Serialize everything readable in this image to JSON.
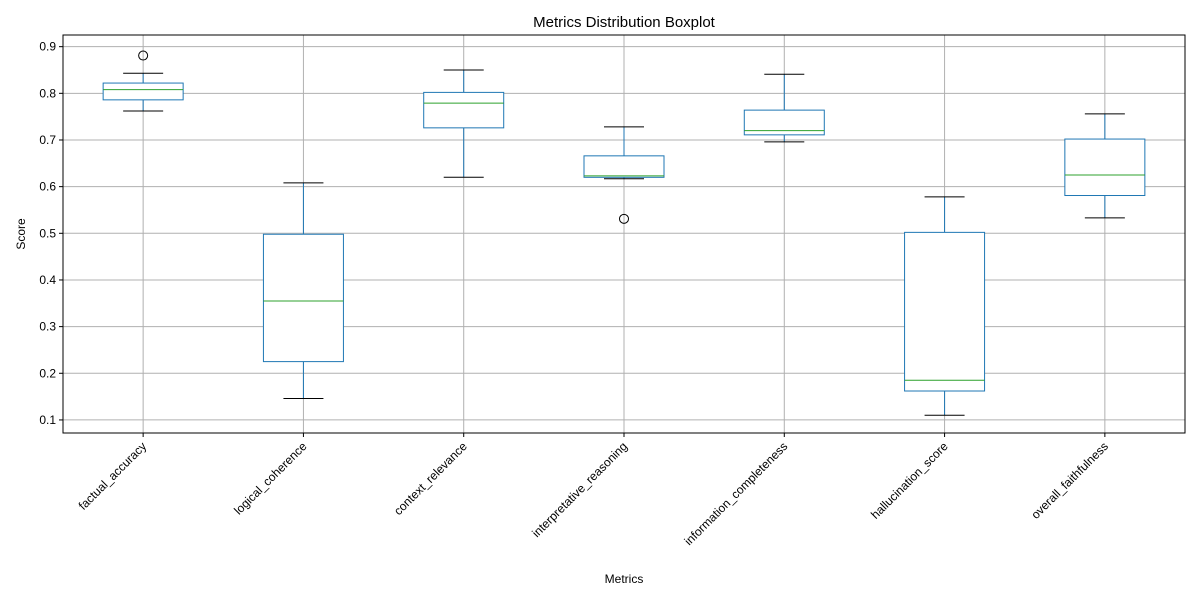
{
  "chart_data": {
    "type": "boxplot",
    "title": "Metrics Distribution Boxplot",
    "xlabel": "Metrics",
    "ylabel": "Score",
    "ylim": [
      0.072,
      0.925
    ],
    "yticks": [
      "0.1",
      "0.2",
      "0.3",
      "0.4",
      "0.5",
      "0.6",
      "0.7",
      "0.8",
      "0.9"
    ],
    "grid": true,
    "colors": {
      "box": "#1f77b4",
      "median": "#2ca02c",
      "whisker_cap": "#000000",
      "grid": "#b0b0b0"
    },
    "categories": [
      "factual_accuracy",
      "logical_coherence",
      "context_relevance",
      "interpretative_reasoning",
      "information_completeness",
      "hallucination_score",
      "overall_faithfulness"
    ],
    "boxes": [
      {
        "whislo": 0.762,
        "q1": 0.786,
        "med": 0.808,
        "q3": 0.822,
        "whishi": 0.843,
        "fliers": [
          0.881
        ]
      },
      {
        "whislo": 0.146,
        "q1": 0.225,
        "med": 0.355,
        "q3": 0.498,
        "whishi": 0.608,
        "fliers": []
      },
      {
        "whislo": 0.62,
        "q1": 0.726,
        "med": 0.779,
        "q3": 0.802,
        "whishi": 0.85,
        "fliers": []
      },
      {
        "whislo": 0.617,
        "q1": 0.62,
        "med": 0.623,
        "q3": 0.666,
        "whishi": 0.728,
        "fliers": [
          0.531
        ]
      },
      {
        "whislo": 0.696,
        "q1": 0.711,
        "med": 0.72,
        "q3": 0.764,
        "whishi": 0.841,
        "fliers": []
      },
      {
        "whislo": 0.11,
        "q1": 0.162,
        "med": 0.185,
        "q3": 0.502,
        "whishi": 0.578,
        "fliers": []
      },
      {
        "whislo": 0.533,
        "q1": 0.581,
        "med": 0.625,
        "q3": 0.702,
        "whishi": 0.756,
        "fliers": []
      }
    ]
  }
}
